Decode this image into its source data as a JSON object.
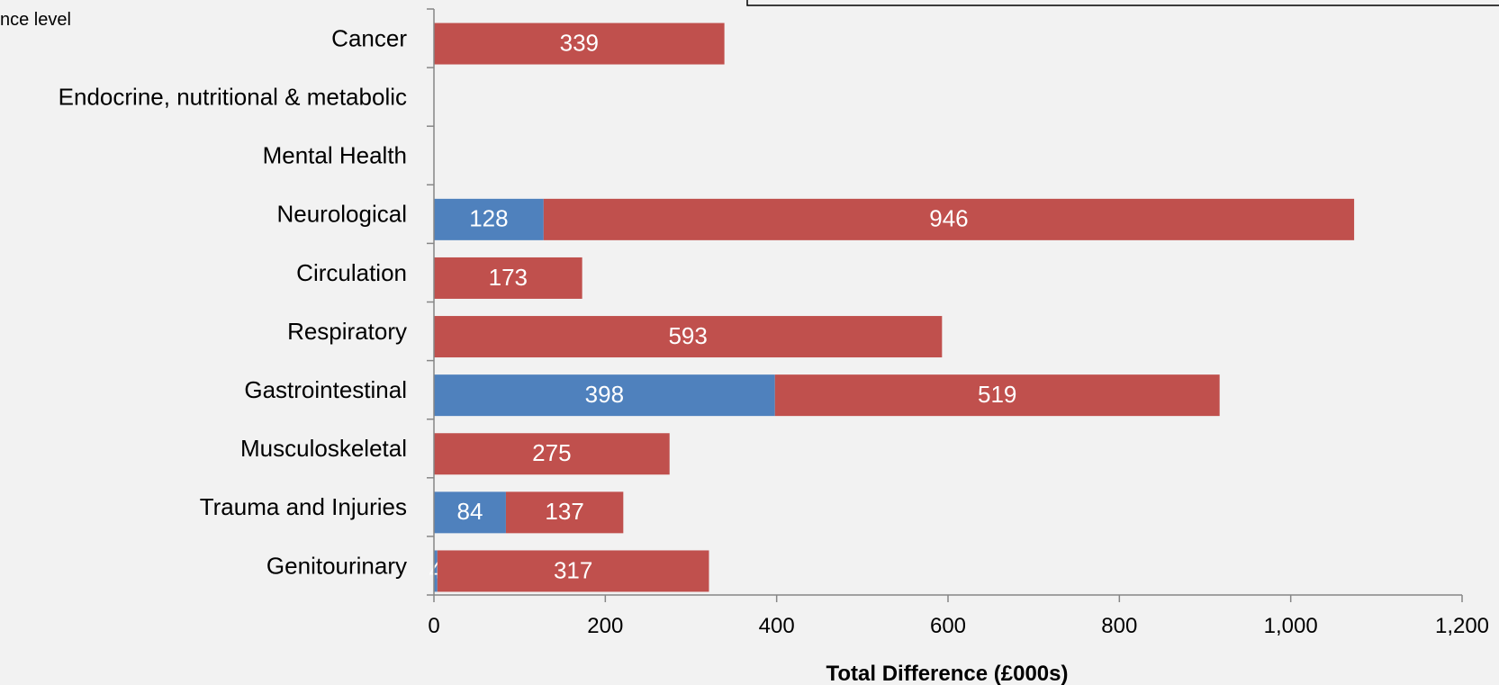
{
  "fragment_text": "nce level",
  "chart_data": {
    "type": "bar",
    "orientation": "horizontal",
    "stacked": true,
    "categories": [
      "Cancer",
      "Endocrine, nutritional & metabolic",
      "Mental Health",
      "Neurological",
      "Circulation",
      "Respiratory",
      "Gastrointestinal",
      "Musculoskeletal",
      "Trauma and Injuries",
      "Genitourinary"
    ],
    "series": [
      {
        "color": "#4f81bd",
        "values": [
          0,
          0,
          0,
          128,
          0,
          0,
          398,
          0,
          84,
          4
        ]
      },
      {
        "color": "#c0504d",
        "values": [
          339,
          0,
          0,
          946,
          173,
          593,
          519,
          275,
          137,
          317
        ]
      }
    ],
    "xlabel": "Total Difference (£000s)",
    "xlim": [
      0,
      1200
    ],
    "xticks": [
      0,
      200,
      400,
      600,
      800,
      1000,
      1200
    ],
    "xtick_labels": [
      "0",
      "200",
      "400",
      "600",
      "800",
      "1,000",
      "1,200"
    ],
    "grid": false,
    "legend": "none"
  }
}
